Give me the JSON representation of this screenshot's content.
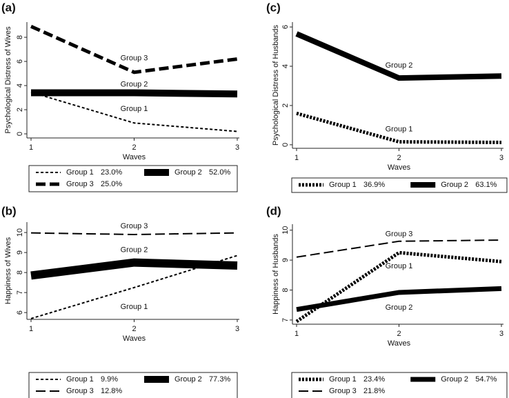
{
  "chart_data": [
    {
      "type": "line",
      "panel": "(a)",
      "ylabel": "Psychological Distress of Wives",
      "xlabel": "Waves",
      "x": [
        1,
        2,
        3
      ],
      "xlim": [
        1,
        3
      ],
      "xticks": [
        1,
        2,
        3
      ],
      "ylim": [
        -0.34,
        9.26
      ],
      "yticks": [
        0,
        2,
        4,
        6,
        8
      ],
      "series": [
        {
          "name": "Group 1",
          "legend_share": "23.0%",
          "annotation": "Group 1",
          "color": "#000000",
          "line_style": "short",
          "line_width": 2,
          "values": [
            3.45,
            0.9,
            0.2
          ]
        },
        {
          "name": "Group 2",
          "legend_share": "52.0%",
          "annotation": "Group 2",
          "color": "#000000",
          "line_style": "solid",
          "line_width": 10,
          "values": [
            3.4,
            3.4,
            3.3
          ]
        },
        {
          "name": "Group 3",
          "legend_share": "25.0%",
          "annotation": "Group 3",
          "color": "#000000",
          "line_style": "long",
          "line_width": 5,
          "values": [
            8.9,
            5.1,
            6.2
          ]
        }
      ]
    },
    {
      "type": "line",
      "panel": "(b)",
      "ylabel": "Happiness of Wives",
      "xlabel": "Waves",
      "x": [
        1,
        2,
        3
      ],
      "xlim": [
        1,
        3
      ],
      "xticks": [
        1,
        2,
        3
      ],
      "ylim": [
        5.66,
        10.52
      ],
      "yticks": [
        6,
        7,
        8,
        9,
        10
      ],
      "series": [
        {
          "name": "Group 1",
          "legend_share": "9.9%",
          "annotation": "Group 1",
          "color": "#000000",
          "line_style": "short",
          "line_width": 2,
          "values": [
            5.7,
            7.25,
            8.85
          ]
        },
        {
          "name": "Group 2",
          "legend_share": "77.3%",
          "annotation": "Group 2",
          "color": "#000000",
          "line_style": "solid",
          "line_width": 12,
          "values": [
            7.85,
            8.5,
            8.35
          ]
        },
        {
          "name": "Group 3",
          "legend_share": "12.8%",
          "annotation": "Group 3",
          "color": "#000000",
          "line_style": "long",
          "line_width": 2,
          "values": [
            9.98,
            9.9,
            9.98
          ]
        }
      ]
    },
    {
      "type": "line",
      "panel": "(c)",
      "ylabel": "Psychological Distress of Husbands",
      "xlabel": "Waves",
      "x": [
        1,
        2,
        3
      ],
      "xlim": [
        1,
        3
      ],
      "xticks": [
        1,
        2,
        3
      ],
      "ylim": [
        -0.18,
        6.25
      ],
      "yticks": [
        0,
        2,
        4,
        6
      ],
      "series": [
        {
          "name": "Group 1",
          "legend_share": "36.9%",
          "annotation": "Group 1",
          "color": "#000000",
          "line_style": "dot",
          "line_width": 5,
          "values": [
            1.6,
            0.15,
            0.12
          ]
        },
        {
          "name": "Group 2",
          "legend_share": "63.1%",
          "annotation": "Group 2",
          "color": "#000000",
          "line_style": "solid",
          "line_width": 8,
          "values": [
            5.65,
            3.4,
            3.5
          ]
        }
      ]
    },
    {
      "type": "line",
      "panel": "(d)",
      "ylabel": "Happiness of Husbands",
      "xlabel": "Waves",
      "x": [
        1,
        2,
        3
      ],
      "xlim": [
        1,
        3
      ],
      "xticks": [
        1,
        2,
        3
      ],
      "ylim": [
        6.86,
        10.2
      ],
      "yticks": [
        7,
        8,
        9,
        10
      ],
      "series": [
        {
          "name": "Group 1",
          "legend_share": "23.4%",
          "annotation": "Group 1",
          "color": "#000000",
          "line_style": "dot",
          "line_width": 5,
          "values": [
            6.95,
            9.25,
            8.95
          ]
        },
        {
          "name": "Group 2",
          "legend_share": "54.7%",
          "annotation": "Group 2",
          "color": "#000000",
          "line_style": "solid",
          "line_width": 7,
          "values": [
            7.35,
            7.92,
            8.05
          ]
        },
        {
          "name": "Group 3",
          "legend_share": "21.8%",
          "annotation": "Group 3",
          "color": "#000000",
          "line_style": "long",
          "line_width": 2,
          "values": [
            9.1,
            9.63,
            9.67
          ]
        }
      ]
    }
  ]
}
